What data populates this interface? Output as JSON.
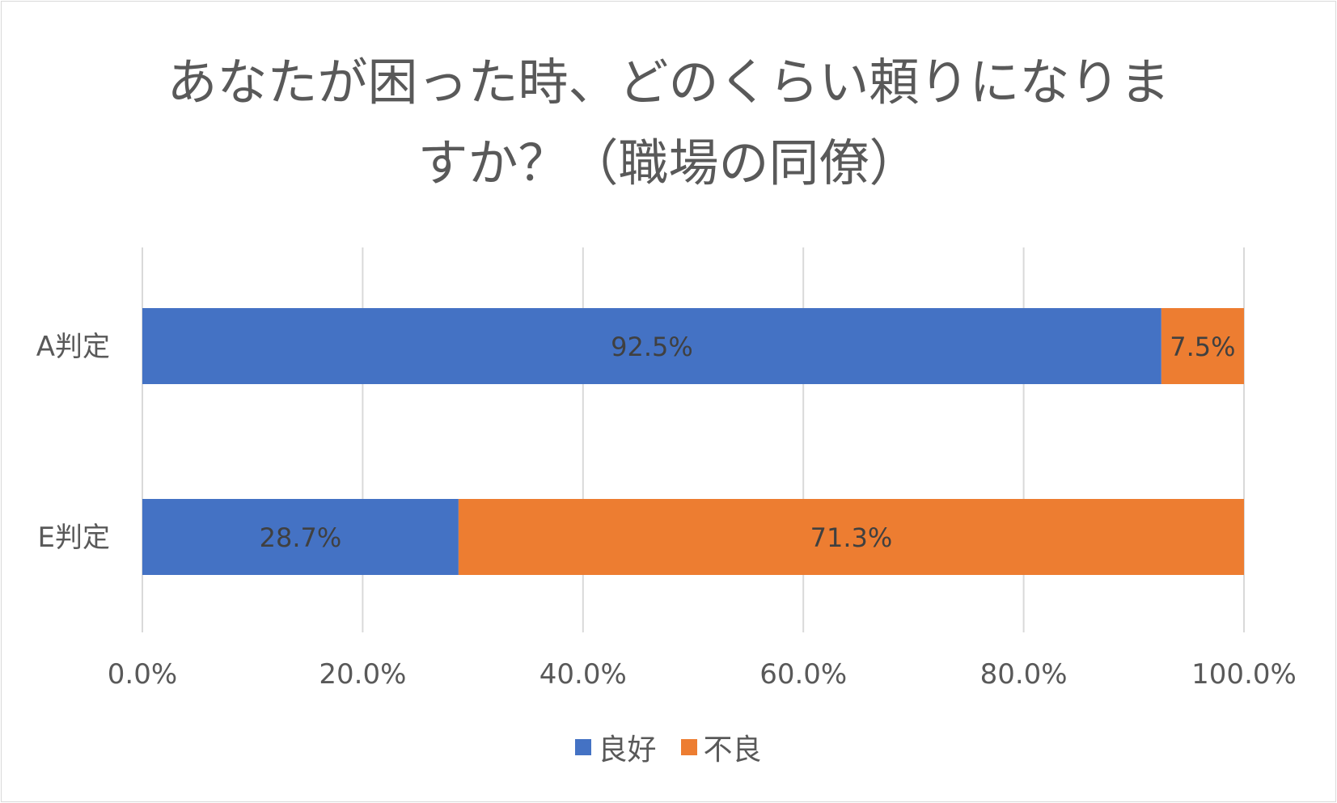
{
  "chart_data": {
    "type": "bar",
    "orientation": "horizontal",
    "stacked": "percent",
    "title_lines": [
      "あなたが困った時、どのくらい頼りになりま",
      "すか？（職場の同僚）"
    ],
    "categories": [
      "A判定",
      "E判定"
    ],
    "series": [
      {
        "name": "良好",
        "color": "#4472c4",
        "values": [
          92.5,
          28.7
        ],
        "labels": [
          "92.5%",
          "28.7%"
        ]
      },
      {
        "name": "不良",
        "color": "#ed7d31",
        "values": [
          7.5,
          71.3
        ],
        "labels": [
          "7.5%",
          "71.3%"
        ]
      }
    ],
    "xlim": [
      0,
      100
    ],
    "x_ticks": [
      "0.0%",
      "20.0%",
      "40.0%",
      "60.0%",
      "80.0%",
      "100.0%"
    ],
    "grid": true,
    "legend_position": "bottom"
  }
}
